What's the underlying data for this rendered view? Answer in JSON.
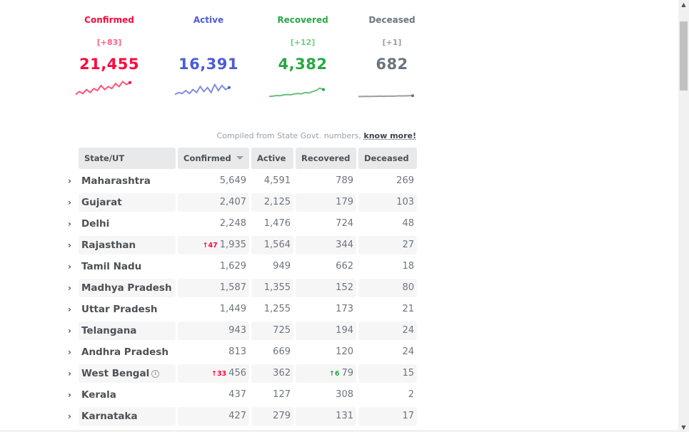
{
  "stats": [
    {
      "title": "Confirmed",
      "delta": "[+83]",
      "total": "21,455",
      "color": "#ff073a",
      "delta_color": "#ff6384",
      "spark": [
        0.3,
        0.45,
        0.35,
        0.55,
        0.4,
        0.6,
        0.5,
        0.75,
        0.55,
        0.7,
        0.6,
        0.85,
        0.7,
        0.95,
        0.8,
        0.9
      ]
    },
    {
      "title": "Active",
      "delta": "",
      "total": "16,391",
      "color": "#4c5bd6",
      "delta_color": "#4c5bd6",
      "spark": [
        0.3,
        0.4,
        0.35,
        0.5,
        0.35,
        0.55,
        0.4,
        0.7,
        0.45,
        0.65,
        0.4,
        0.8,
        0.5,
        0.75,
        0.55,
        0.65
      ]
    },
    {
      "title": "Recovered",
      "delta": "[+12]",
      "total": "4,382",
      "color": "#28a745",
      "delta_color": "#6fcf84",
      "spark": [
        0.2,
        0.22,
        0.25,
        0.24,
        0.28,
        0.3,
        0.29,
        0.33,
        0.35,
        0.34,
        0.4,
        0.38,
        0.45,
        0.5,
        0.62,
        0.55
      ]
    },
    {
      "title": "Deceased",
      "delta": "[+1]",
      "total": "682",
      "color": "#6c757d",
      "delta_color": "#9aa0a6",
      "spark": [
        0.2,
        0.2,
        0.21,
        0.2,
        0.21,
        0.21,
        0.22,
        0.21,
        0.22,
        0.22,
        0.22,
        0.23,
        0.23,
        0.23,
        0.24,
        0.24
      ]
    }
  ],
  "compiled": {
    "text": "Compiled from State Govt. numbers,",
    "link": "know more!"
  },
  "table": {
    "headers": {
      "state": "State/UT",
      "confirmed": "Confirmed",
      "active": "Active",
      "recovered": "Recovered",
      "deceased": "Deceased"
    },
    "rows": [
      {
        "state": "Maharashtra",
        "confirmed": "5,649",
        "active": "4,591",
        "recovered": "789",
        "deceased": "269"
      },
      {
        "state": "Gujarat",
        "confirmed": "2,407",
        "active": "2,125",
        "recovered": "179",
        "deceased": "103"
      },
      {
        "state": "Delhi",
        "confirmed": "2,248",
        "active": "1,476",
        "recovered": "724",
        "deceased": "48"
      },
      {
        "state": "Rajasthan",
        "confirmed": "1,935",
        "confirmed_inc": "↑47",
        "active": "1,564",
        "recovered": "344",
        "deceased": "27"
      },
      {
        "state": "Tamil Nadu",
        "confirmed": "1,629",
        "active": "949",
        "recovered": "662",
        "deceased": "18"
      },
      {
        "state": "Madhya Pradesh",
        "confirmed": "1,587",
        "active": "1,355",
        "recovered": "152",
        "deceased": "80"
      },
      {
        "state": "Uttar Pradesh",
        "confirmed": "1,449",
        "active": "1,255",
        "recovered": "173",
        "deceased": "21"
      },
      {
        "state": "Telangana",
        "confirmed": "943",
        "active": "725",
        "recovered": "194",
        "deceased": "24"
      },
      {
        "state": "Andhra Pradesh",
        "confirmed": "813",
        "active": "669",
        "recovered": "120",
        "deceased": "24"
      },
      {
        "state": "West Bengal",
        "info": "i",
        "confirmed": "456",
        "confirmed_inc": "↑33",
        "active": "362",
        "recovered": "79",
        "recovered_inc": "↑6",
        "deceased": "15"
      },
      {
        "state": "Kerala",
        "confirmed": "437",
        "active": "127",
        "recovered": "308",
        "deceased": "2"
      },
      {
        "state": "Karnataka",
        "confirmed": "427",
        "active": "279",
        "recovered": "131",
        "deceased": "17"
      }
    ]
  },
  "icons": {
    "expand": "chevron-right-icon",
    "info": "info-icon",
    "sort": "sort-down-icon"
  }
}
